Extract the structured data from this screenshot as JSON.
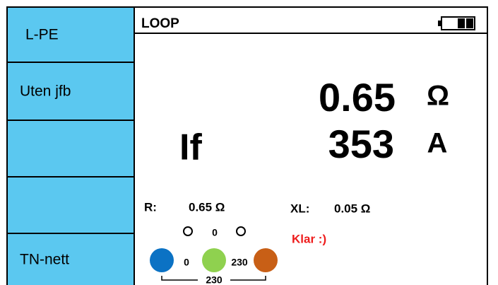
{
  "sidebar": {
    "buttons": [
      "L-PE",
      "Uten jfb",
      "",
      "",
      "TN-nett"
    ]
  },
  "header": {
    "title": "LOOP"
  },
  "main_reading": {
    "value": "0.65",
    "unit": "Ω"
  },
  "secondary_reading": {
    "label": "If",
    "value": "353",
    "unit": "A"
  },
  "details": {
    "r_label": "R:",
    "r_value": "0.65 Ω",
    "xl_label": "XL:",
    "xl_value": "0.05 Ω"
  },
  "status": "Klar :)",
  "voltages": {
    "top": "0",
    "left": "0",
    "right": "230",
    "bottom": "230"
  }
}
